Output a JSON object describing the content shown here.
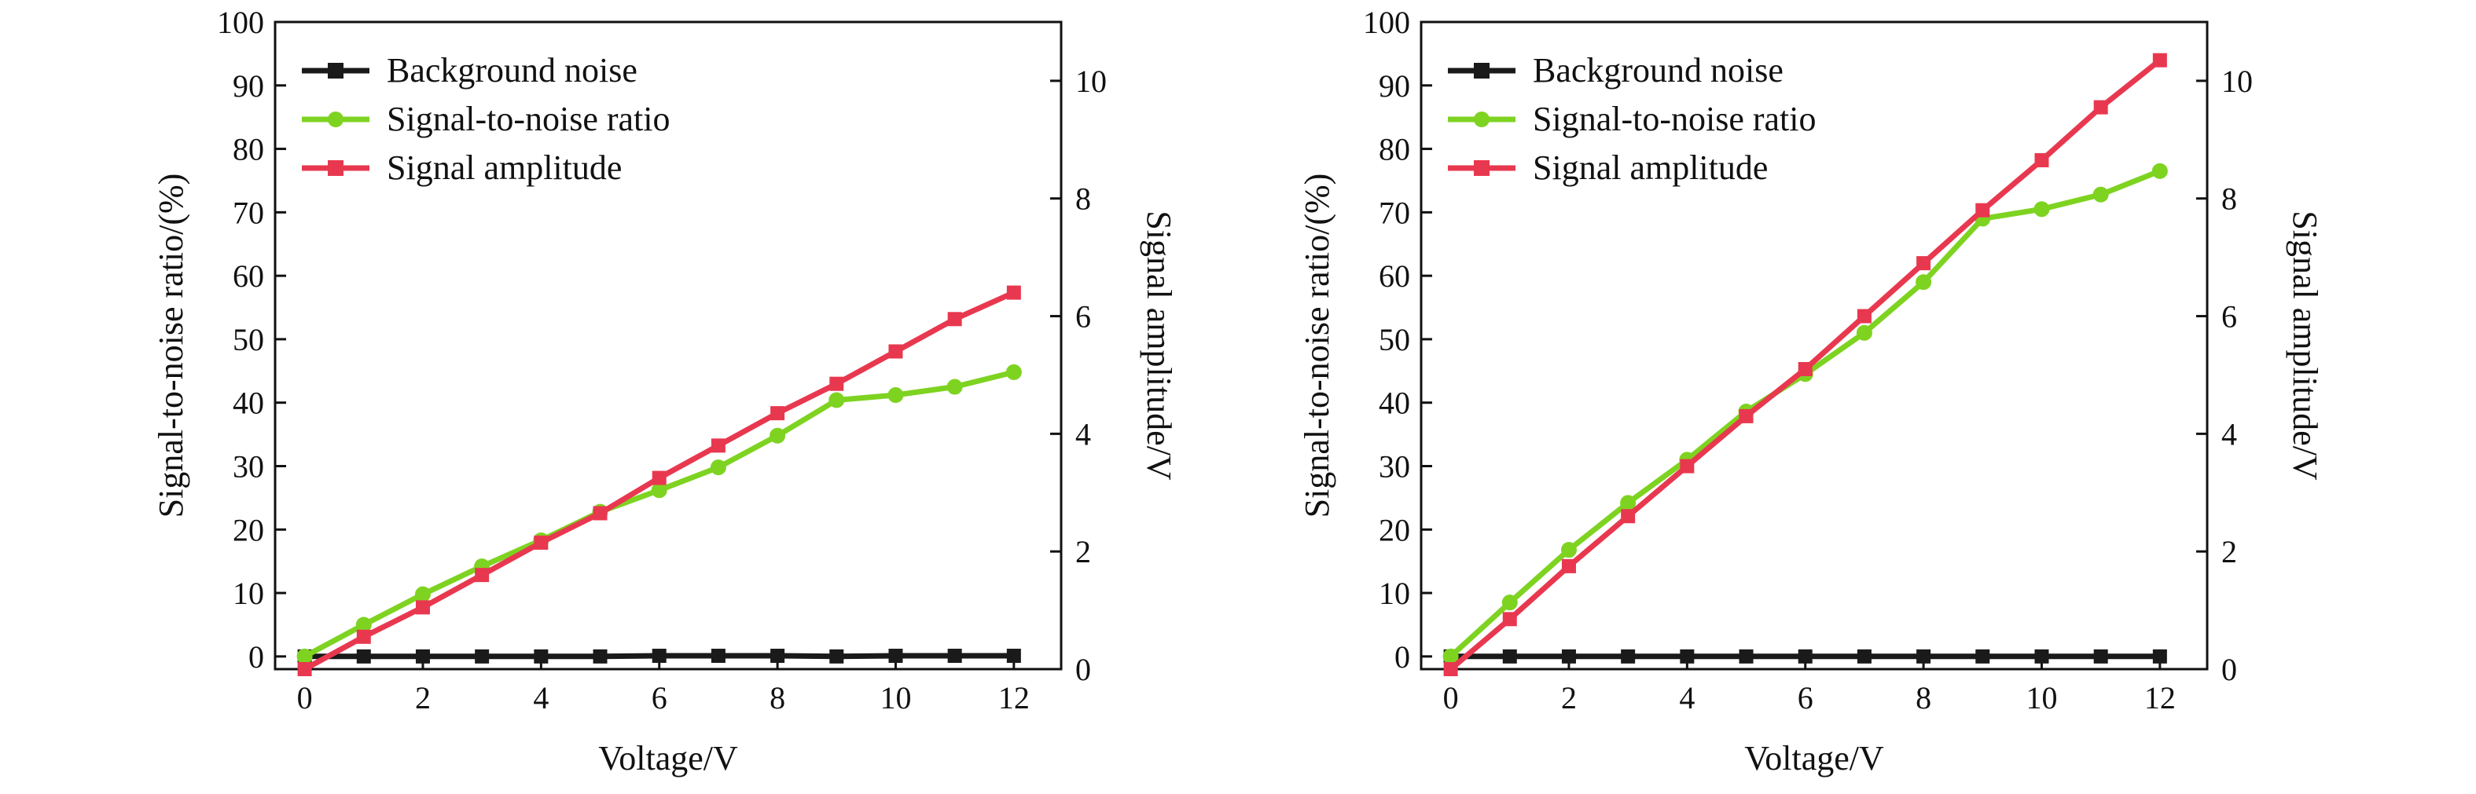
{
  "colors": {
    "noise": "#1a1a1a",
    "snr": "#7ed321",
    "amplitude": "#e8384f",
    "axis": "#111111"
  },
  "chart_data": [
    {
      "type": "line",
      "xlabel": "Voltage/V",
      "ylabel": "Signal-to-noise ratio/(%)",
      "y2label": "Signal amplitude/V",
      "xlim": [
        -0.5,
        12.8
      ],
      "ylim": [
        -2,
        100
      ],
      "y2lim": [
        0,
        11
      ],
      "xticks": [
        "0",
        "2",
        "4",
        "6",
        "8",
        "10",
        "12"
      ],
      "yticks": [
        "0",
        "10",
        "20",
        "30",
        "40",
        "50",
        "60",
        "70",
        "80",
        "90",
        "100"
      ],
      "y2ticks": [
        "0",
        "2",
        "4",
        "6",
        "8",
        "10"
      ],
      "grid": false,
      "legend": "top-left",
      "x": [
        0,
        1,
        2,
        3,
        4,
        5,
        6,
        7,
        8,
        9,
        10,
        11,
        12
      ],
      "series": [
        {
          "name": "Background noise",
          "axis": "left",
          "marker": "square",
          "values": [
            0,
            0,
            0,
            0,
            0,
            0,
            0.1,
            0.1,
            0.1,
            0,
            0.1,
            0.1,
            0.1
          ]
        },
        {
          "name": "Signal-to-noise ratio",
          "axis": "left",
          "marker": "circle",
          "values": [
            0,
            5,
            9.8,
            14.2,
            18.3,
            22.8,
            26.2,
            29.8,
            34.8,
            40.4,
            41.2,
            42.5,
            44.8
          ]
        },
        {
          "name": "Signal amplitude",
          "axis": "right",
          "marker": "square",
          "values": [
            0,
            0.55,
            1.05,
            1.6,
            2.15,
            2.65,
            3.25,
            3.8,
            4.35,
            4.85,
            5.4,
            5.95,
            6.4
          ]
        }
      ]
    },
    {
      "type": "line",
      "xlabel": "Voltage/V",
      "ylabel": "Signal-to-noise ratio/(%)",
      "y2label": "Signal amplitude/V",
      "xlim": [
        -0.5,
        12.8
      ],
      "ylim": [
        -2,
        100
      ],
      "y2lim": [
        0,
        11
      ],
      "xticks": [
        "0",
        "2",
        "4",
        "6",
        "8",
        "10",
        "12"
      ],
      "yticks": [
        "0",
        "10",
        "20",
        "30",
        "40",
        "50",
        "60",
        "70",
        "80",
        "90",
        "100"
      ],
      "y2ticks": [
        "0",
        "2",
        "4",
        "6",
        "8",
        "10"
      ],
      "grid": false,
      "legend": "top-left",
      "x": [
        0,
        1,
        2,
        3,
        4,
        5,
        6,
        7,
        8,
        9,
        10,
        11,
        12
      ],
      "series": [
        {
          "name": "Background noise",
          "axis": "left",
          "marker": "square",
          "values": [
            0,
            0,
            0,
            0,
            0,
            0,
            0,
            0,
            0,
            0,
            0,
            0,
            0
          ]
        },
        {
          "name": "Signal-to-noise ratio",
          "axis": "left",
          "marker": "circle",
          "values": [
            0,
            8.5,
            16.8,
            24.2,
            31,
            38.6,
            44.5,
            51,
            59,
            69,
            70.5,
            72.8,
            76.5
          ]
        },
        {
          "name": "Signal amplitude",
          "axis": "right",
          "marker": "square",
          "values": [
            0,
            0.85,
            1.75,
            2.6,
            3.45,
            4.3,
            5.1,
            6,
            6.9,
            7.8,
            8.65,
            9.55,
            10.35
          ]
        }
      ]
    }
  ]
}
